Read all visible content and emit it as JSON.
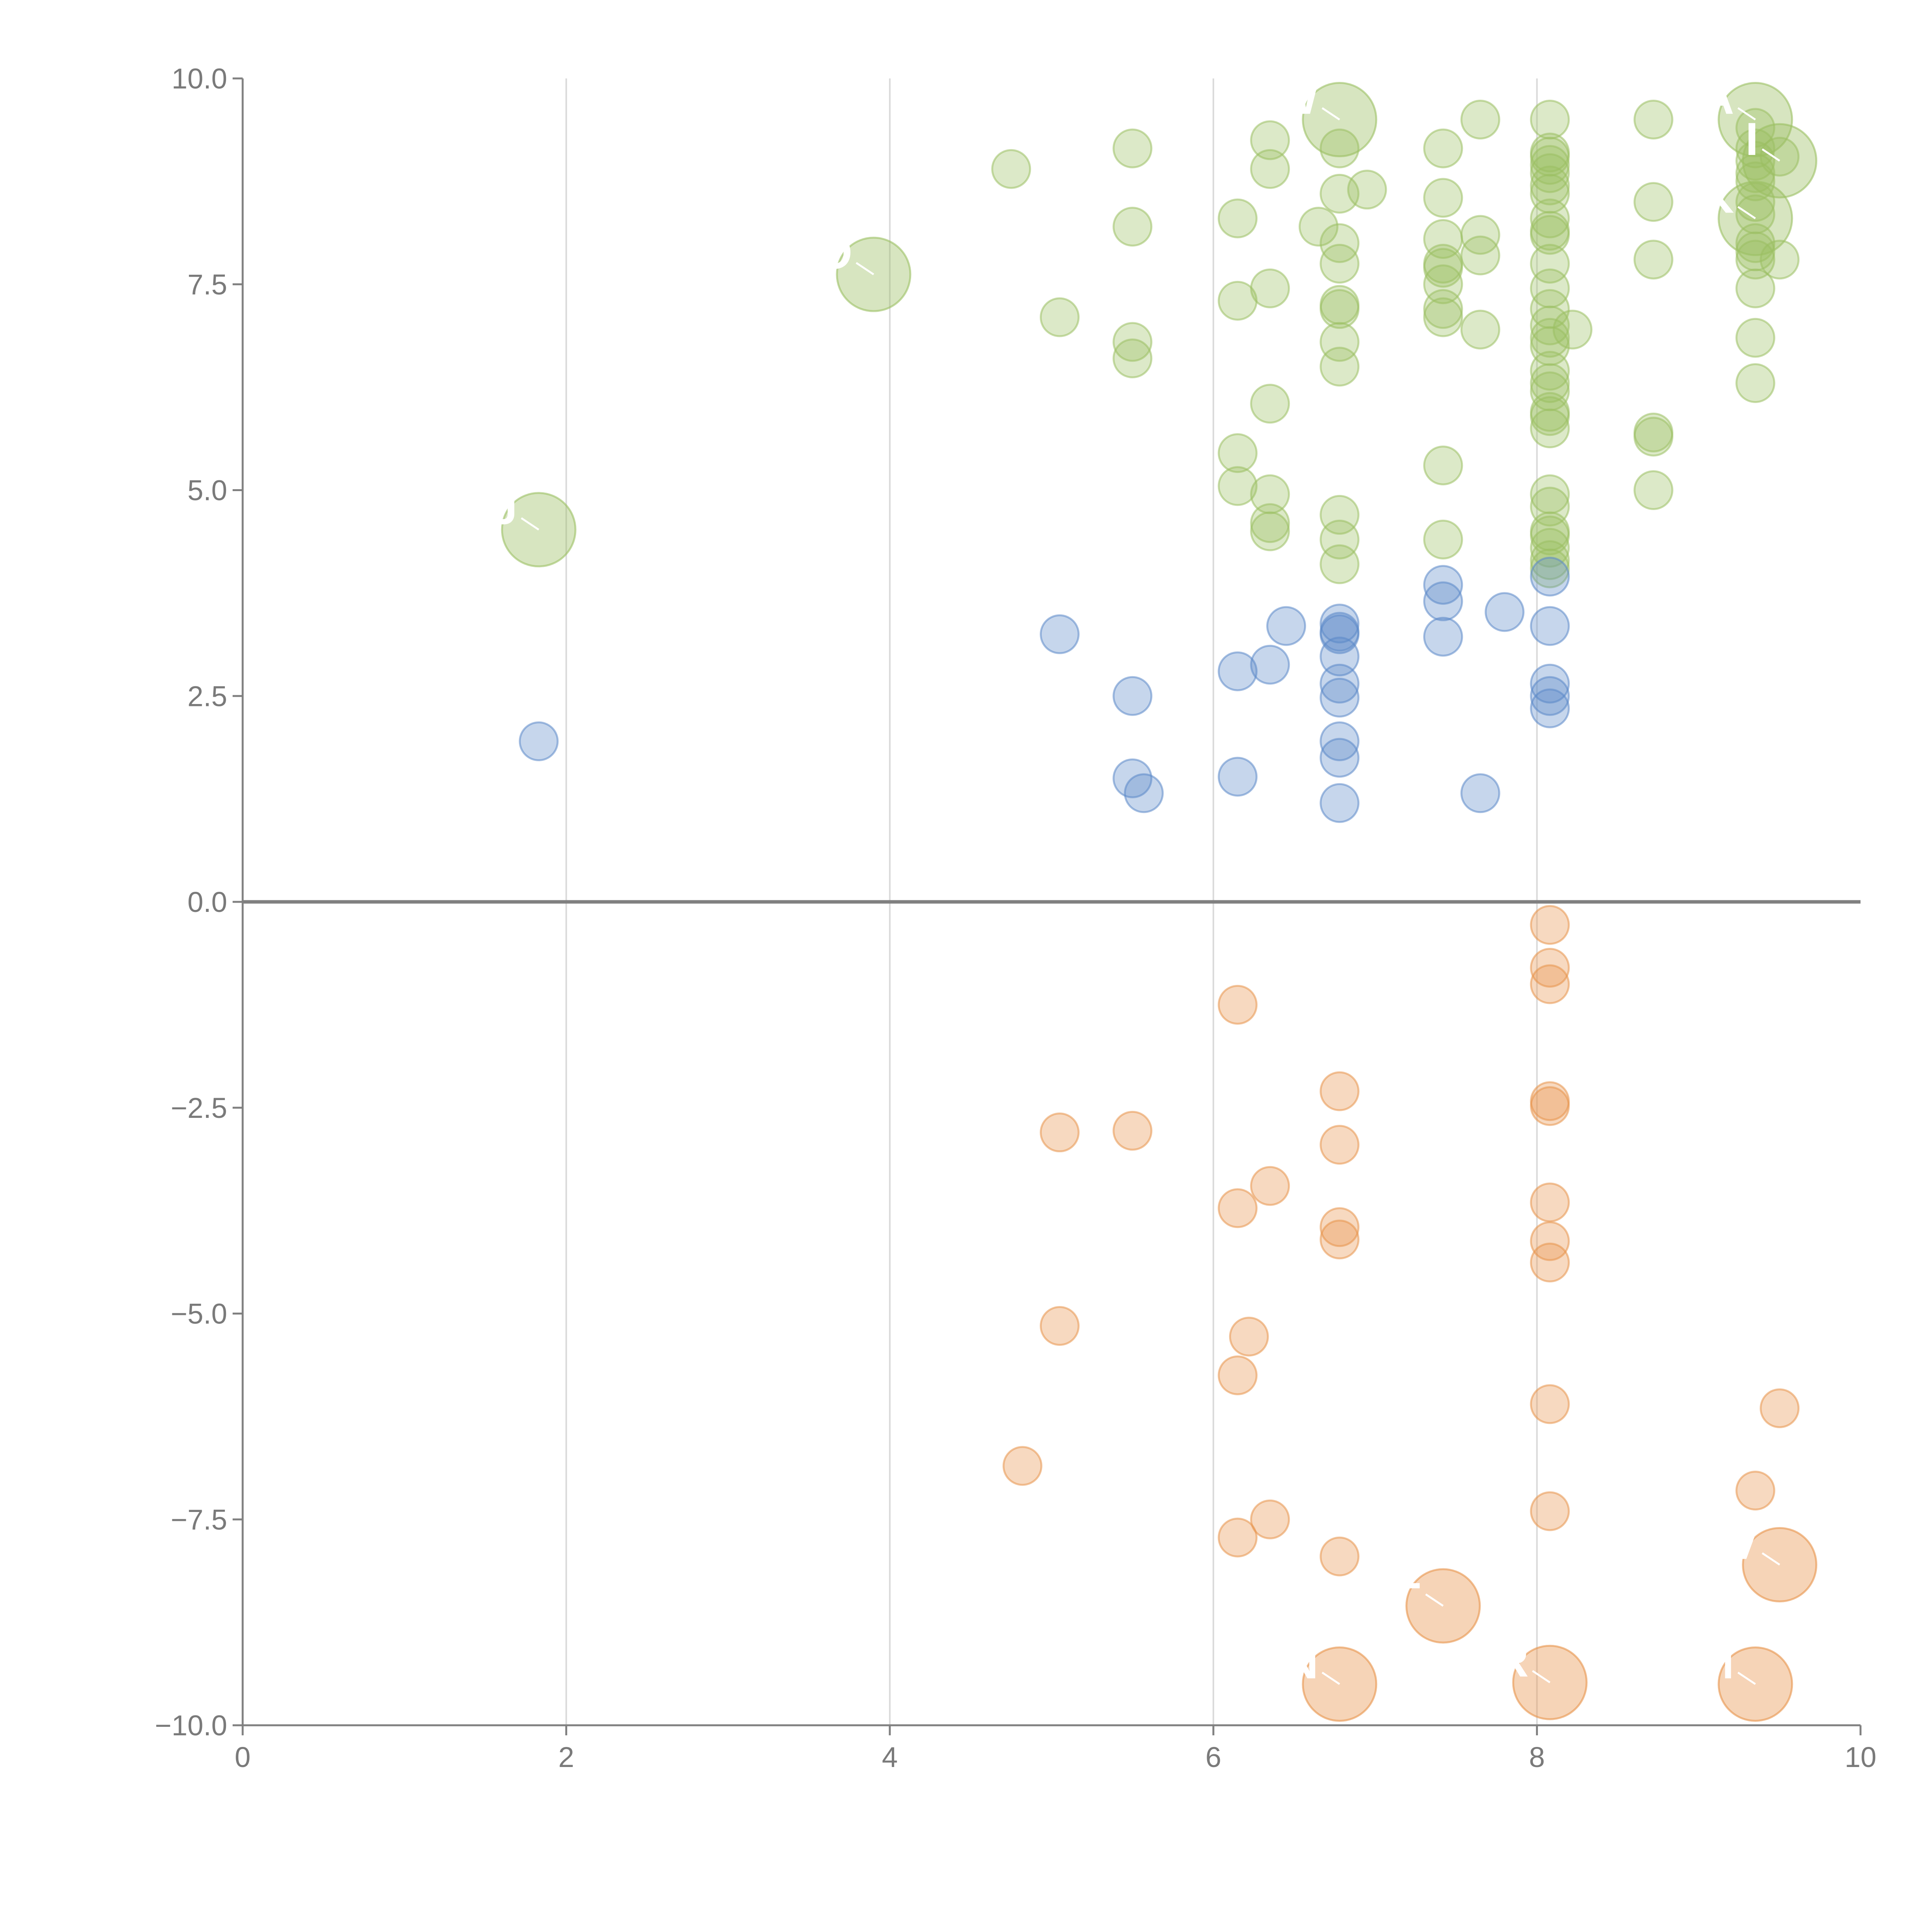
{
  "chart_data": {
    "type": "scatter",
    "title": "",
    "xlabel": "",
    "ylabel": "",
    "xlim": [
      0,
      10
    ],
    "ylim": [
      -10,
      10
    ],
    "grid": "vertical",
    "x_ticks": [
      0,
      2,
      4,
      6,
      8,
      10
    ],
    "y_ticks": [
      -10,
      -7.5,
      -5,
      -2.5,
      0,
      2.5,
      5,
      7.5,
      10
    ],
    "x_tick_labels": [
      "0",
      "2",
      "4",
      "6",
      "8",
      "10"
    ],
    "y_tick_labels": [
      "−10.0",
      "−7.5",
      "−5.0",
      "−2.5",
      "0.0",
      "2.5",
      "5.0",
      "7.5",
      "10.0"
    ],
    "colors": {
      "green": "#9bbf62",
      "blue": "#5b89c8",
      "orange": "#e8934a",
      "axis": "#808080",
      "grid": "#d9d9d9"
    },
    "series": [
      {
        "name": "green",
        "color": "#9bbf62",
        "points": [
          [
            4.75,
            8.9
          ],
          [
            5.5,
            9.15
          ],
          [
            5.5,
            8.2
          ],
          [
            5.05,
            7.1
          ],
          [
            5.5,
            6.8
          ],
          [
            5.5,
            6.6
          ],
          [
            6.15,
            8.3
          ],
          [
            6.15,
            7.3
          ],
          [
            6.15,
            5.45
          ],
          [
            6.15,
            5.05
          ],
          [
            6.35,
            9.25
          ],
          [
            6.35,
            8.9
          ],
          [
            6.35,
            7.45
          ],
          [
            6.35,
            6.05
          ],
          [
            6.35,
            4.95
          ],
          [
            6.35,
            4.6
          ],
          [
            6.35,
            4.5
          ],
          [
            6.65,
            8.2
          ],
          [
            6.78,
            9.15
          ],
          [
            6.78,
            8.6
          ],
          [
            6.78,
            8.0
          ],
          [
            6.78,
            7.75
          ],
          [
            6.78,
            7.25
          ],
          [
            6.78,
            7.2
          ],
          [
            6.78,
            6.8
          ],
          [
            6.78,
            6.5
          ],
          [
            6.78,
            4.7
          ],
          [
            6.78,
            4.4
          ],
          [
            6.78,
            4.1
          ],
          [
            6.95,
            8.65
          ],
          [
            7.42,
            9.15
          ],
          [
            7.42,
            8.55
          ],
          [
            7.42,
            8.05
          ],
          [
            7.42,
            7.75
          ],
          [
            7.42,
            7.7
          ],
          [
            7.42,
            7.5
          ],
          [
            7.42,
            7.2
          ],
          [
            7.42,
            7.1
          ],
          [
            7.42,
            5.3
          ],
          [
            7.42,
            4.4
          ],
          [
            7.65,
            9.5
          ],
          [
            7.65,
            8.1
          ],
          [
            7.65,
            7.85
          ],
          [
            7.65,
            6.95
          ],
          [
            8.08,
            9.5
          ],
          [
            8.08,
            9.1
          ],
          [
            8.08,
            9.05
          ],
          [
            8.08,
            8.95
          ],
          [
            8.08,
            8.85
          ],
          [
            8.08,
            8.7
          ],
          [
            8.08,
            8.6
          ],
          [
            8.08,
            8.3
          ],
          [
            8.08,
            8.15
          ],
          [
            8.08,
            8.1
          ],
          [
            8.08,
            7.75
          ],
          [
            8.08,
            7.45
          ],
          [
            8.08,
            7.2
          ],
          [
            8.08,
            7.0
          ],
          [
            8.08,
            6.85
          ],
          [
            8.08,
            6.75
          ],
          [
            8.08,
            6.45
          ],
          [
            8.08,
            6.3
          ],
          [
            8.08,
            6.2
          ],
          [
            8.08,
            5.95
          ],
          [
            8.08,
            5.9
          ],
          [
            8.08,
            5.75
          ],
          [
            8.08,
            4.95
          ],
          [
            8.08,
            4.8
          ],
          [
            8.08,
            4.5
          ],
          [
            8.08,
            4.45
          ],
          [
            8.08,
            4.3
          ],
          [
            8.08,
            4.15
          ],
          [
            8.08,
            4.05
          ],
          [
            8.22,
            6.95
          ],
          [
            8.72,
            9.5
          ],
          [
            8.72,
            8.5
          ],
          [
            8.72,
            7.8
          ],
          [
            8.72,
            5.7
          ],
          [
            8.72,
            5.65
          ],
          [
            8.72,
            5.0
          ],
          [
            9.35,
            9.4
          ],
          [
            9.35,
            9.15
          ],
          [
            9.35,
            9.0
          ],
          [
            9.35,
            8.85
          ],
          [
            9.35,
            8.75
          ],
          [
            9.35,
            8.5
          ],
          [
            9.35,
            8.35
          ],
          [
            9.35,
            8.0
          ],
          [
            9.35,
            7.9
          ],
          [
            9.35,
            7.8
          ],
          [
            9.35,
            7.45
          ],
          [
            9.35,
            6.85
          ],
          [
            9.35,
            6.3
          ],
          [
            9.5,
            9.05
          ],
          [
            9.5,
            7.8
          ]
        ],
        "bubbles": [
          {
            "x": 1.83,
            "y": 4.52,
            "label": "J"
          },
          {
            "x": 3.9,
            "y": 7.62,
            "label": "O"
          },
          {
            "x": 6.78,
            "y": 9.5,
            "label": "W"
          },
          {
            "x": 9.35,
            "y": 9.5,
            "label": "A"
          },
          {
            "x": 9.5,
            "y": 9.0,
            "label": "I"
          },
          {
            "x": 9.35,
            "y": 8.3,
            "label": "K"
          }
        ]
      },
      {
        "name": "blue",
        "color": "#5b89c8",
        "points": [
          [
            1.83,
            1.95
          ],
          [
            5.05,
            3.25
          ],
          [
            5.5,
            2.5
          ],
          [
            5.5,
            1.5
          ],
          [
            5.57,
            1.32
          ],
          [
            6.15,
            2.8
          ],
          [
            6.15,
            1.52
          ],
          [
            6.35,
            2.88
          ],
          [
            6.45,
            3.35
          ],
          [
            6.78,
            3.38
          ],
          [
            6.78,
            3.28
          ],
          [
            6.78,
            3.25
          ],
          [
            6.78,
            2.98
          ],
          [
            6.78,
            2.65
          ],
          [
            6.78,
            2.48
          ],
          [
            6.78,
            1.95
          ],
          [
            6.78,
            1.75
          ],
          [
            6.78,
            1.2
          ],
          [
            7.42,
            3.85
          ],
          [
            7.42,
            3.65
          ],
          [
            7.42,
            3.22
          ],
          [
            7.65,
            1.32
          ],
          [
            7.8,
            3.52
          ],
          [
            8.08,
            3.95
          ],
          [
            8.08,
            3.35
          ],
          [
            8.08,
            2.65
          ],
          [
            8.08,
            2.5
          ],
          [
            8.08,
            2.35
          ]
        ],
        "bubbles": []
      },
      {
        "name": "orange",
        "color": "#e8934a",
        "points": [
          [
            4.82,
            -6.85
          ],
          [
            5.05,
            -2.8
          ],
          [
            5.05,
            -5.15
          ],
          [
            5.5,
            -2.78
          ],
          [
            6.15,
            -1.25
          ],
          [
            6.15,
            -3.72
          ],
          [
            6.15,
            -5.75
          ],
          [
            6.15,
            -7.72
          ],
          [
            6.22,
            -5.28
          ],
          [
            6.35,
            -3.45
          ],
          [
            6.35,
            -7.5
          ],
          [
            6.78,
            -2.3
          ],
          [
            6.78,
            -2.95
          ],
          [
            6.78,
            -3.95
          ],
          [
            6.78,
            -4.1
          ],
          [
            6.78,
            -7.95
          ],
          [
            8.08,
            -0.28
          ],
          [
            8.08,
            -0.8
          ],
          [
            8.08,
            -1.0
          ],
          [
            8.08,
            -2.42
          ],
          [
            8.08,
            -2.48
          ],
          [
            8.08,
            -3.65
          ],
          [
            8.08,
            -4.12
          ],
          [
            8.08,
            -4.38
          ],
          [
            8.08,
            -6.1
          ],
          [
            8.08,
            -7.4
          ],
          [
            9.35,
            -7.15
          ],
          [
            9.5,
            -6.15
          ]
        ],
        "bubbles": [
          {
            "x": 7.42,
            "y": -8.55,
            "label": "F"
          },
          {
            "x": 9.5,
            "y": -8.05,
            "label": "V"
          },
          {
            "x": 6.78,
            "y": -9.5,
            "label": "N"
          },
          {
            "x": 8.08,
            "y": -9.48,
            "label": "R"
          },
          {
            "x": 9.35,
            "y": -9.5,
            "label": "M"
          }
        ]
      }
    ]
  }
}
